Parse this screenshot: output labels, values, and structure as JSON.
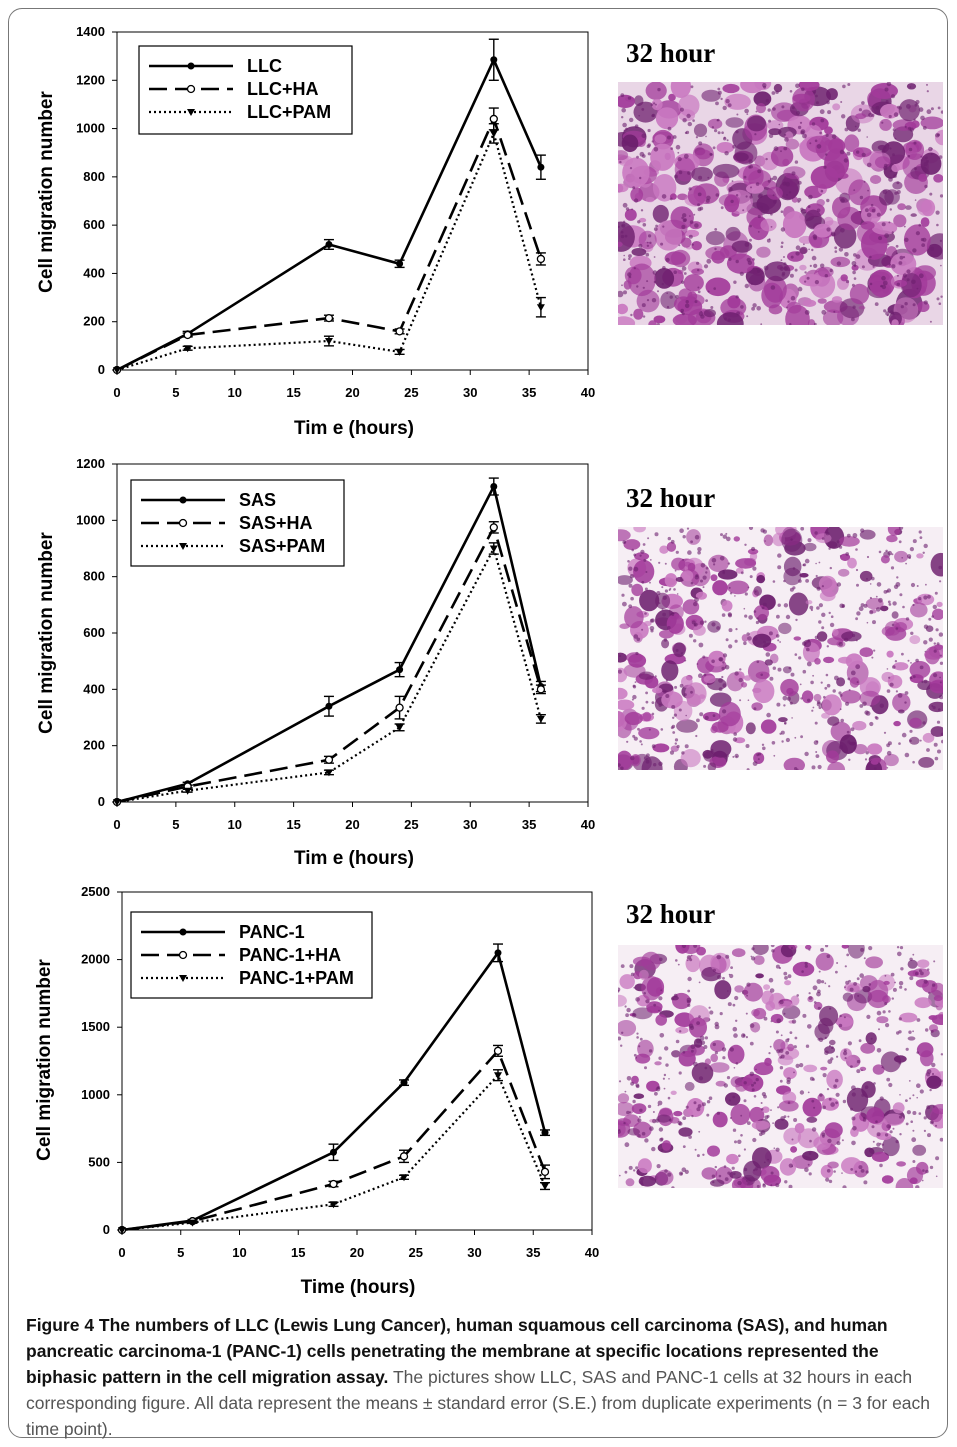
{
  "chart_data": [
    {
      "type": "line",
      "xlabel": "Tim e (hours)",
      "ylabel": "Cell migration number",
      "xlim": [
        0,
        40
      ],
      "ylim": [
        0,
        1400
      ],
      "xticks": [
        "0",
        "5",
        "10",
        "15",
        "20",
        "25",
        "30",
        "35",
        "40"
      ],
      "yticks": [
        "0",
        "200",
        "400",
        "600",
        "800",
        "1000",
        "1200",
        "1400"
      ],
      "legend_position": "top-left",
      "x": [
        0,
        6,
        18,
        24,
        32,
        36
      ],
      "series": [
        {
          "name": "LLC",
          "style": "solid",
          "marker": "filled-circle",
          "values": [
            0,
            150,
            520,
            440,
            1285,
            840
          ],
          "errors": [
            0,
            10,
            20,
            15,
            85,
            50
          ]
        },
        {
          "name": "LLC+HA",
          "style": "dashed",
          "marker": "open-circle",
          "values": [
            0,
            145,
            215,
            160,
            1040,
            460
          ],
          "errors": [
            0,
            8,
            12,
            10,
            45,
            25
          ]
        },
        {
          "name": "LLC+PAM",
          "style": "dotted",
          "marker": "triangle-down",
          "values": [
            0,
            90,
            120,
            75,
            980,
            260
          ],
          "errors": [
            0,
            8,
            20,
            10,
            40,
            40
          ]
        }
      ]
    },
    {
      "type": "line",
      "xlabel": "Tim e (hours)",
      "ylabel": "Cell migration number",
      "xlim": [
        0,
        40
      ],
      "ylim": [
        0,
        1200
      ],
      "xticks": [
        "0",
        "5",
        "10",
        "15",
        "20",
        "25",
        "30",
        "35",
        "40"
      ],
      "yticks": [
        "0",
        "200",
        "400",
        "600",
        "800",
        "1000",
        "1200"
      ],
      "legend_position": "top-left",
      "x": [
        0,
        6,
        18,
        24,
        32,
        36
      ],
      "series": [
        {
          "name": "SAS",
          "style": "solid",
          "marker": "filled-circle",
          "values": [
            0,
            65,
            340,
            470,
            1120,
            410
          ],
          "errors": [
            0,
            5,
            35,
            25,
            30,
            18
          ]
        },
        {
          "name": "SAS+HA",
          "style": "dashed",
          "marker": "open-circle",
          "values": [
            0,
            55,
            150,
            335,
            975,
            400
          ],
          "errors": [
            0,
            5,
            12,
            40,
            20,
            15
          ]
        },
        {
          "name": "SAS+PAM",
          "style": "dotted",
          "marker": "triangle-down",
          "values": [
            0,
            40,
            105,
            265,
            900,
            295
          ],
          "errors": [
            0,
            5,
            8,
            12,
            20,
            15
          ]
        }
      ]
    },
    {
      "type": "line",
      "xlabel": "Time (hours)",
      "ylabel": "Cell migration number",
      "xlim": [
        0,
        40
      ],
      "ylim": [
        0,
        2500
      ],
      "xticks": [
        "0",
        "5",
        "10",
        "15",
        "20",
        "25",
        "30",
        "35",
        "40"
      ],
      "yticks": [
        "0",
        "500",
        "1000",
        "1500",
        "2000",
        "2500"
      ],
      "legend_position": "top-left",
      "x": [
        0,
        6,
        18,
        24,
        32,
        36
      ],
      "series": [
        {
          "name": "PANC-1",
          "style": "solid",
          "marker": "filled-circle",
          "values": [
            0,
            70,
            575,
            1090,
            2050,
            720
          ],
          "errors": [
            0,
            8,
            60,
            20,
            65,
            20
          ]
        },
        {
          "name": "PANC-1+HA",
          "style": "dashed",
          "marker": "open-circle",
          "values": [
            0,
            65,
            340,
            545,
            1325,
            430
          ],
          "errors": [
            0,
            8,
            20,
            45,
            40,
            50
          ]
        },
        {
          "name": "PANC-1+PAM",
          "style": "dotted",
          "marker": "triangle-down",
          "values": [
            0,
            55,
            190,
            390,
            1145,
            325
          ],
          "errors": [
            0,
            5,
            15,
            15,
            40,
            25
          ]
        }
      ]
    }
  ],
  "photos": [
    {
      "title": "32 hour",
      "density": 0.62
    },
    {
      "title": "32 hour",
      "density": 0.42
    },
    {
      "title": "32 hour",
      "density": 0.38
    }
  ],
  "colors": {
    "purple": "#a23a9a",
    "purple_light": "#c978c0",
    "background": "#ffffff",
    "purple_dark": "#6d1f6e"
  },
  "caption": {
    "bold": "Figure 4 The numbers of LLC (Lewis Lung Cancer), human squamous cell carcinoma (SAS), and human pancreatic carcinoma-1 (PANC-1) cells penetrating the membrane at specific locations represented the biphasic pattern in the cell migration assay.",
    "normal": " The pictures show LLC, SAS and PANC-1 cells at 32 hours in each corresponding figure. All data represent the means ± standard error (S.E.) from duplicate experiments (n = 3 for each time point)."
  }
}
